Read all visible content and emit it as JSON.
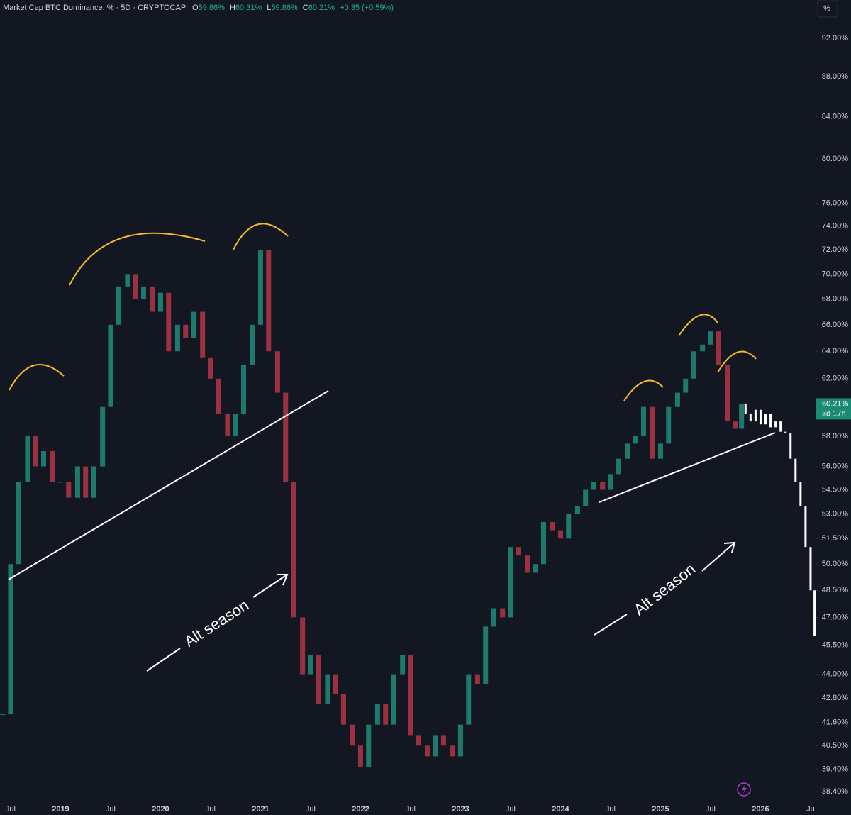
{
  "chart_data": {
    "type": "candlestick",
    "header": {
      "title": "Market Cap BTC Dominance, % · 5D · CRYPTOCAP",
      "o": "O",
      "open": "59.86%",
      "h": "H",
      "high": "60.31%",
      "l": "L",
      "low": "59.86%",
      "c": "C",
      "close": "60.21%",
      "change": "+0.35 (+0.59%)"
    },
    "scale_button": "%",
    "price_label": "60.21%",
    "countdown": "3d 17h",
    "annotations": [
      "Alt season",
      "Alt season"
    ],
    "log_scale": true,
    "up_color": "#1f7a6e",
    "down_color": "#9b3040",
    "x": [
      2018.42,
      2018.5,
      2018.58,
      2018.67,
      2018.75,
      2018.83,
      2018.92,
      2019.0,
      2019.08,
      2019.17,
      2019.25,
      2019.33,
      2019.42,
      2019.5,
      2019.58,
      2019.67,
      2019.75,
      2019.83,
      2019.92,
      2020.0,
      2020.08,
      2020.17,
      2020.25,
      2020.33,
      2020.42,
      2020.5,
      2020.58,
      2020.67,
      2020.75,
      2020.83,
      2020.92,
      2021.0,
      2021.08,
      2021.17,
      2021.25,
      2021.33,
      2021.42,
      2021.5,
      2021.58,
      2021.67,
      2021.75,
      2021.83,
      2021.92,
      2022.0,
      2022.08,
      2022.17,
      2022.25,
      2022.33,
      2022.42,
      2022.5,
      2022.58,
      2022.67,
      2022.75,
      2022.83,
      2022.92,
      2023.0,
      2023.08,
      2023.17,
      2023.25,
      2023.33,
      2023.42,
      2023.5,
      2023.58,
      2023.67,
      2023.75,
      2023.83,
      2023.92,
      2024.0,
      2024.08,
      2024.17,
      2024.25,
      2024.33,
      2024.42,
      2024.5,
      2024.58,
      2024.67,
      2024.75,
      2024.83,
      2024.92,
      2025.0,
      2025.08,
      2025.17,
      2025.25,
      2025.33,
      2025.42,
      2025.5,
      2025.58,
      2025.67,
      2025.75,
      2025.81
    ],
    "values": [
      42,
      50,
      55,
      58,
      56,
      57,
      55,
      55,
      54,
      56,
      54,
      56,
      60,
      66,
      69,
      70,
      68,
      69,
      67,
      68.5,
      64,
      66,
      65,
      67,
      63.5,
      62,
      59.5,
      58,
      59.5,
      63,
      66,
      72,
      64,
      61,
      55,
      47,
      44,
      45,
      42.5,
      44,
      43,
      41.5,
      40.5,
      39.5,
      41.5,
      42.5,
      41.5,
      44,
      45,
      41,
      40.5,
      40,
      41,
      40.5,
      40,
      41.5,
      44,
      43.5,
      46.5,
      47.5,
      47,
      51,
      50.5,
      49.5,
      50,
      52.5,
      52,
      51.5,
      53,
      53.5,
      54.5,
      55,
      54.5,
      55.5,
      56.5,
      57.5,
      58,
      60,
      56.5,
      57.5,
      60,
      61,
      62,
      64,
      64.5,
      65.5,
      63,
      59,
      58.5,
      60.21
    ],
    "projection": {
      "color": "#ffffff",
      "x": [
        2025.85,
        2025.9,
        2025.95,
        2026.0,
        2026.05,
        2026.1,
        2026.15,
        2026.2,
        2026.25,
        2026.3,
        2026.35,
        2026.4,
        2026.45,
        2026.5,
        2026.54
      ],
      "values": [
        59.5,
        59,
        59.8,
        58.8,
        59.5,
        58.6,
        59,
        58.3,
        58.2,
        56.5,
        55,
        53.5,
        51,
        48.5,
        46
      ]
    },
    "xlim": [
      2018.394,
      2026.55
    ],
    "xticks": [
      {
        "value": 2018.5,
        "label": "Jul"
      },
      2019,
      {
        "value": 2019.5,
        "label": "Jul"
      },
      2020,
      {
        "value": 2020.5,
        "label": "Jul"
      },
      2021,
      {
        "value": 2021.5,
        "label": "Jul"
      },
      2022,
      {
        "value": 2022.5,
        "label": "Jul"
      },
      2023,
      {
        "value": 2023.5,
        "label": "Jul"
      },
      2024,
      {
        "value": 2024.5,
        "label": "Jul"
      },
      2025,
      {
        "value": 2025.5,
        "label": "Jul"
      },
      2026,
      {
        "value": 2026.5,
        "label": "Ju"
      }
    ],
    "ylim": [
      37.96,
      96.2
    ],
    "yticks": [
      {
        "value": 92,
        "label": "92.00%"
      },
      {
        "value": 88,
        "label": "88.00%"
      },
      {
        "value": 84,
        "label": "84.00%"
      },
      {
        "value": 80,
        "label": "80.00%"
      },
      {
        "value": 76,
        "label": "76.00%"
      },
      {
        "value": 74,
        "label": "74.00%"
      },
      {
        "value": 72,
        "label": "72.00%"
      },
      {
        "value": 70,
        "label": "70.00%"
      },
      {
        "value": 68,
        "label": "68.00%"
      },
      {
        "value": 66,
        "label": "66.00%"
      },
      {
        "value": 64,
        "label": "64.00%"
      },
      {
        "value": 62,
        "label": "62.00%"
      },
      {
        "value": 58,
        "label": "58.00%"
      },
      {
        "value": 56,
        "label": "56.00%"
      },
      {
        "value": 54.5,
        "label": "54.50%"
      },
      {
        "value": 53,
        "label": "53.00%"
      },
      {
        "value": 51.5,
        "label": "51.50%"
      },
      {
        "value": 50,
        "label": "50.00%"
      },
      {
        "value": 48.5,
        "label": "48.50%"
      },
      {
        "value": 47,
        "label": "47.00%"
      },
      {
        "value": 45.5,
        "label": "45.50%"
      },
      {
        "value": 44,
        "label": "44.00%"
      },
      {
        "value": 42.8,
        "label": "42.80%"
      },
      {
        "value": 41.6,
        "label": "41.60%"
      },
      {
        "value": 40.5,
        "label": "40.50%"
      },
      {
        "value": 39.4,
        "label": "39.40%"
      },
      {
        "value": 38.4,
        "label": "38.40%"
      }
    ]
  }
}
